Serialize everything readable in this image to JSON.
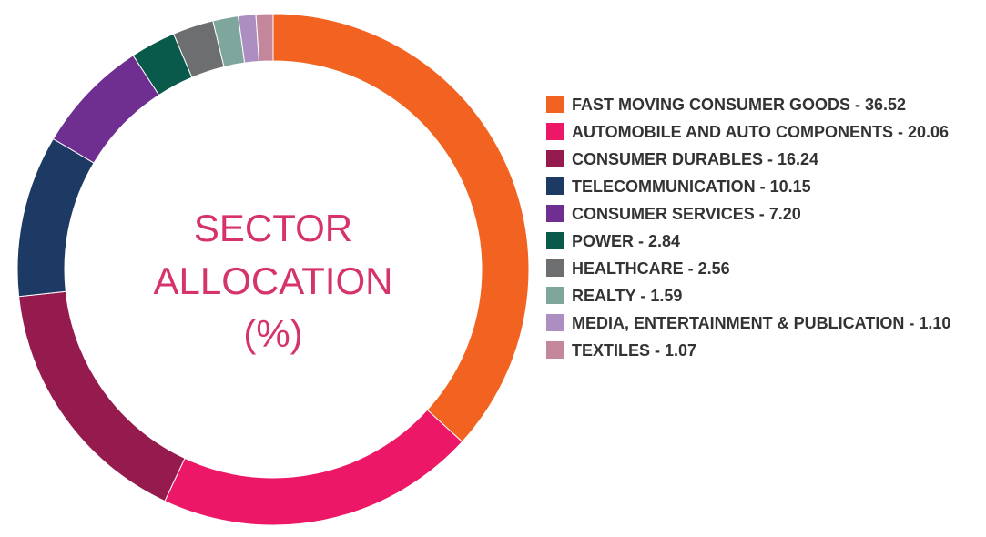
{
  "chart_data": {
    "type": "donut",
    "title": "SECTOR ALLOCATION (%)",
    "categories": [
      "FAST MOVING CONSUMER GOODS - 36.52",
      "AUTOMOBILE AND AUTO COMPONENTS - 20.06",
      "CONSUMER DURABLES - 16.24",
      "TELECOMMUNICATION - 10.15",
      "CONSUMER SERVICES - 7.20",
      "POWER - 2.84",
      "HEALTHCARE - 2.56",
      "REALTY - 1.59",
      "MEDIA, ENTERTAINMENT & PUBLICATION - 1.10",
      "TEXTILES - 1.07"
    ],
    "values": [
      36.52,
      20.06,
      16.24,
      10.15,
      7.2,
      2.84,
      2.56,
      1.59,
      1.1,
      1.07
    ],
    "colors": [
      "#f26322",
      "#ec1766",
      "#951b4f",
      "#1c3a63",
      "#6e2f91",
      "#0a5a4b",
      "#6d6e70",
      "#7fa69d",
      "#ac8fc0",
      "#c4869a"
    ],
    "legend": "right"
  }
}
